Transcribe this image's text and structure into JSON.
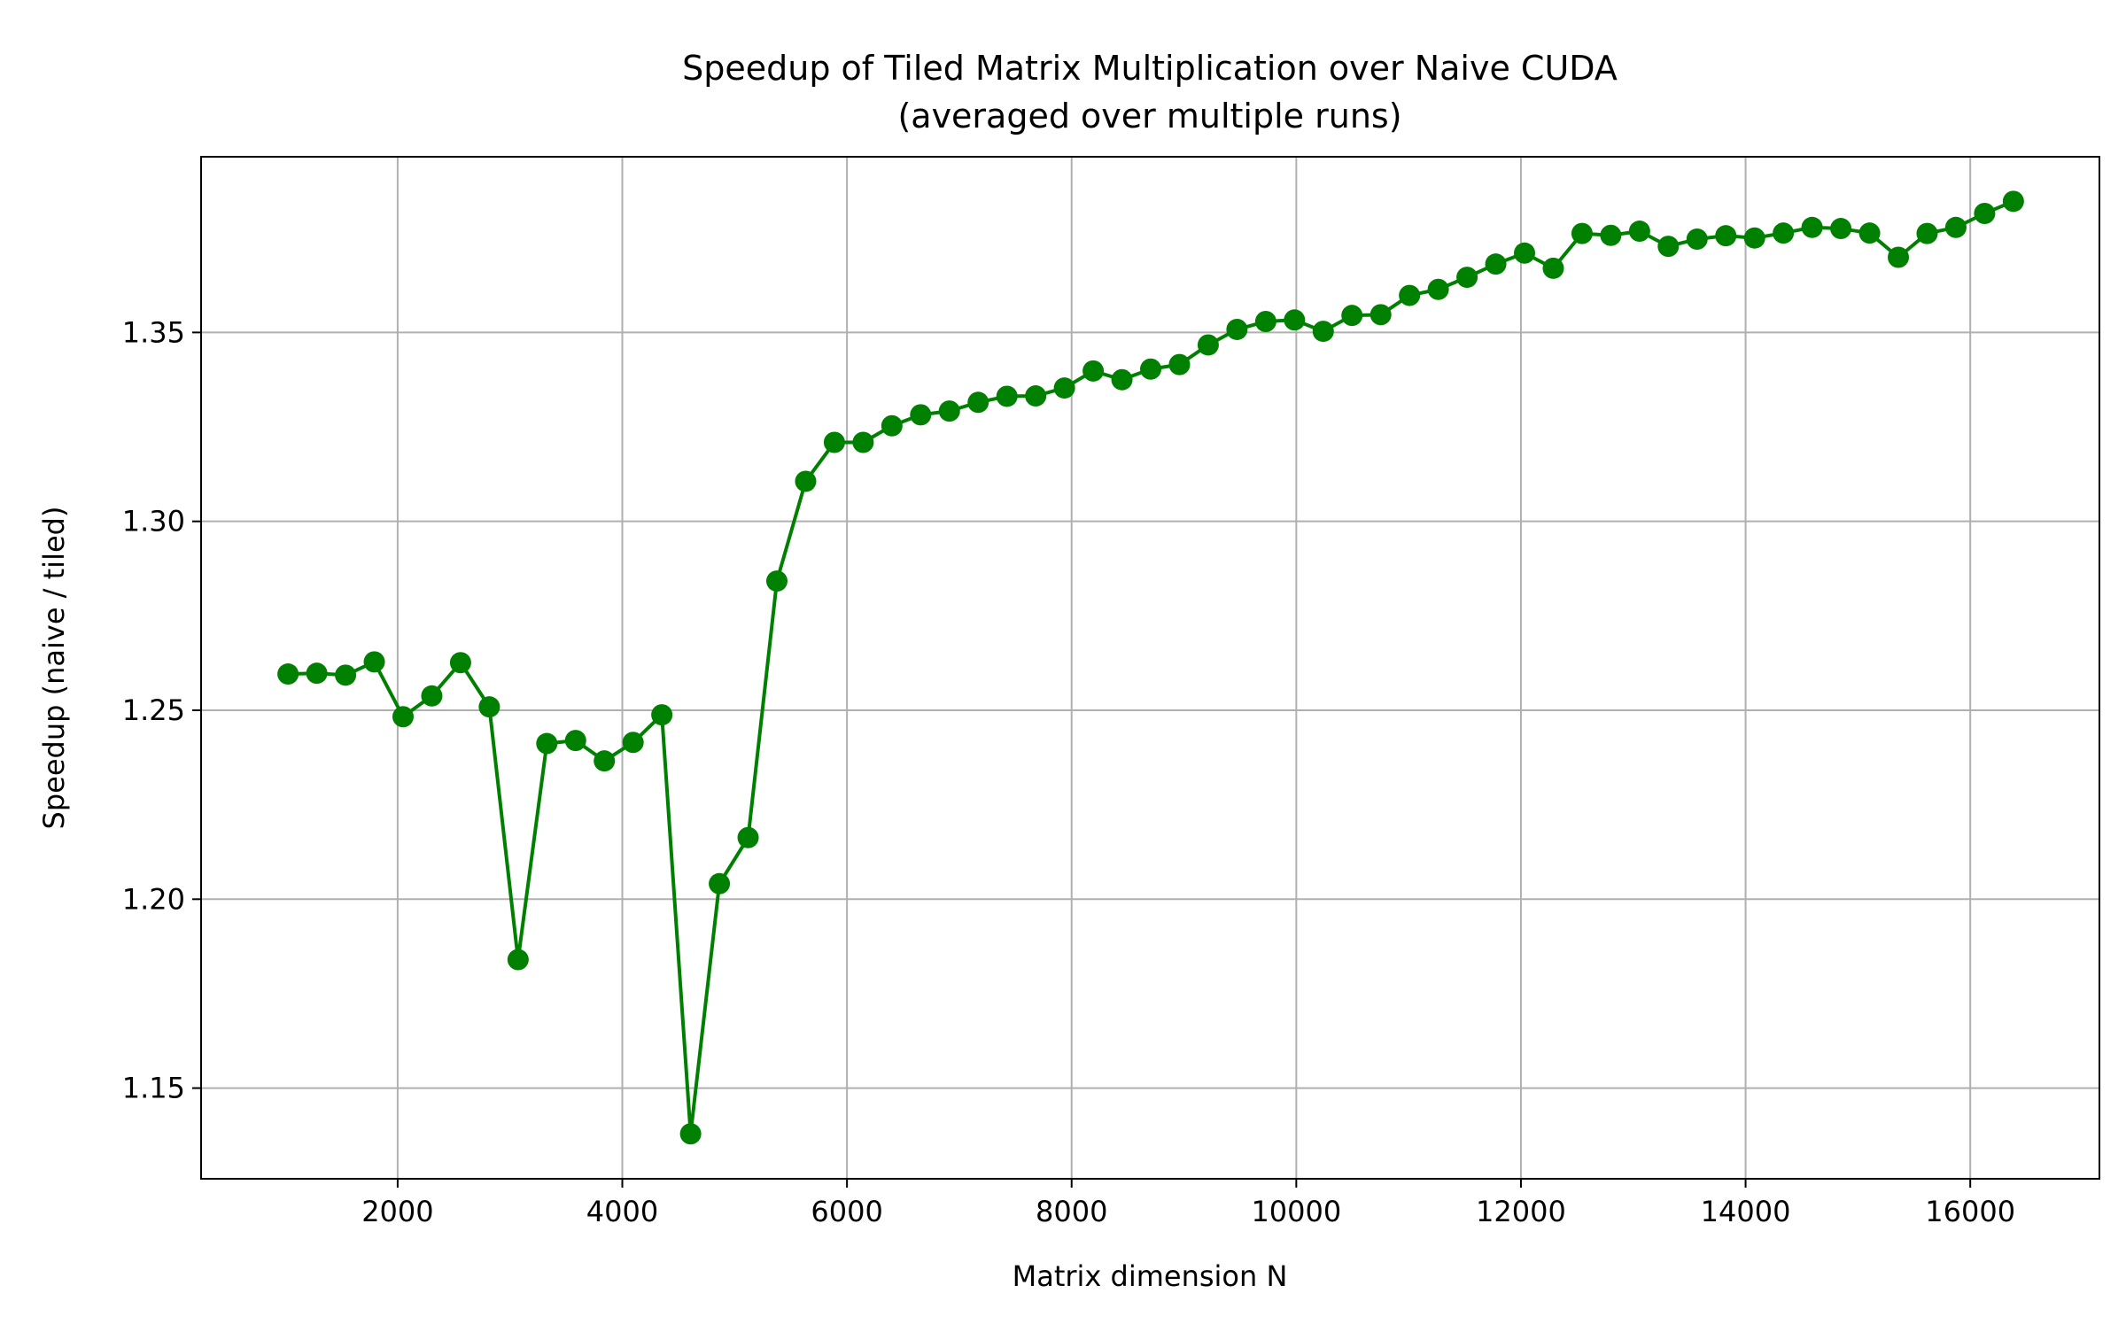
{
  "chart_data": {
    "type": "line",
    "title": "Speedup of Tiled Matrix Multiplication over Naive CUDA",
    "subtitle": "(averaged over multiple runs)",
    "xlabel": "Matrix dimension N",
    "ylabel": "Speedup (naive / tiled)",
    "xlim": [
      250,
      17150
    ],
    "ylim": [
      1.126,
      1.3965
    ],
    "xticks": [
      2000,
      4000,
      6000,
      8000,
      10000,
      12000,
      14000,
      16000
    ],
    "xtick_labels": [
      "2000",
      "4000",
      "6000",
      "8000",
      "10000",
      "12000",
      "14000",
      "16000"
    ],
    "yticks": [
      1.15,
      1.2,
      1.25,
      1.3,
      1.35
    ],
    "ytick_labels": [
      "1.15",
      "1.20",
      "1.25",
      "1.30",
      "1.35"
    ],
    "grid": true,
    "color": "#008000",
    "series": [
      {
        "marker": "circle",
        "x": [
          1024,
          1280,
          1536,
          1792,
          2048,
          2304,
          2560,
          2816,
          3072,
          3328,
          3584,
          3840,
          4096,
          4352,
          4608,
          4864,
          5120,
          5376,
          5632,
          5888,
          6144,
          6400,
          6656,
          6912,
          7168,
          7424,
          7680,
          7936,
          8192,
          8448,
          8704,
          8960,
          9216,
          9472,
          9728,
          9984,
          10240,
          10496,
          10752,
          11008,
          11264,
          11520,
          11776,
          12032,
          12288,
          12544,
          12800,
          13056,
          13312,
          13568,
          13824,
          14080,
          14336,
          14592,
          14848,
          15104,
          15360,
          15616,
          15872,
          16128,
          16384
        ],
        "y": [
          1.2596,
          1.2598,
          1.2593,
          1.2628,
          1.2483,
          1.2538,
          1.2626,
          1.2509,
          1.184,
          1.2412,
          1.242,
          1.2366,
          1.2415,
          1.2488,
          1.1379,
          1.2041,
          1.2163,
          1.2842,
          1.3106,
          1.3209,
          1.3209,
          1.3253,
          1.3282,
          1.3292,
          1.3315,
          1.3331,
          1.3332,
          1.3353,
          1.3398,
          1.3375,
          1.3403,
          1.3415,
          1.3467,
          1.3508,
          1.3529,
          1.3533,
          1.3503,
          1.3545,
          1.3547,
          1.3598,
          1.3614,
          1.3646,
          1.3681,
          1.371,
          1.367,
          1.3762,
          1.3757,
          1.3768,
          1.3728,
          1.3747,
          1.3756,
          1.375,
          1.3763,
          1.3778,
          1.3775,
          1.3763,
          1.3699,
          1.3762,
          1.3778,
          1.3815,
          1.3847
        ]
      }
    ]
  }
}
